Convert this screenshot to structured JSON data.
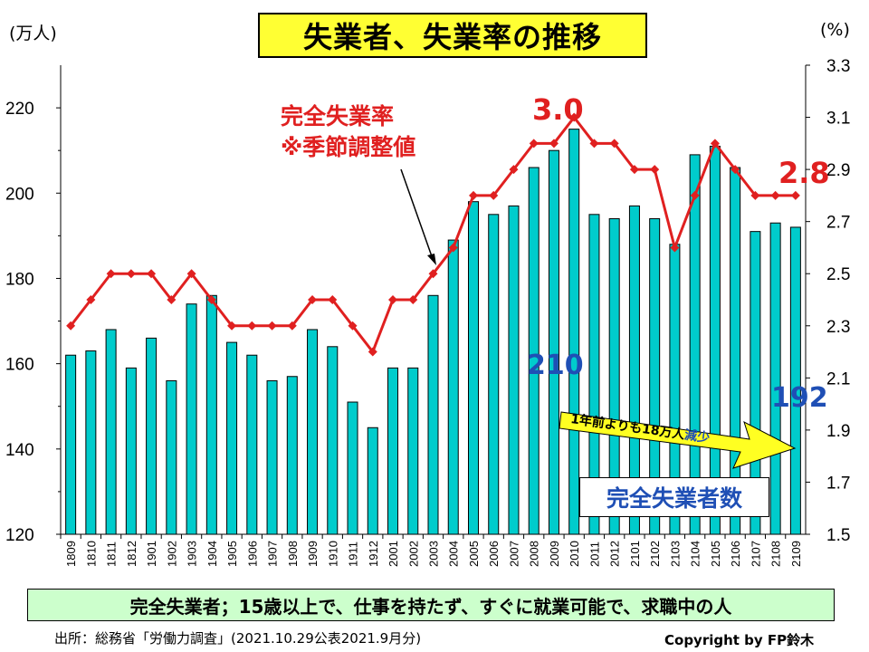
{
  "title": "失業者、失業率の推移",
  "unit_left": "(万人)",
  "unit_right": "(%)",
  "rate_label_line1": "完全失業率",
  "rate_label_line2": "※季節調整値",
  "legend_unemployed": "完全失業者数",
  "arrow_text": "1年前よりも18万人",
  "arrow_text_emph": "減少",
  "definition": "完全失業者；15歳以上で、仕事を持たず、すぐに就業可能で、求職中の人",
  "source": "出所：総務省「労働力調査」(2021.10.29公表2021.9月分)",
  "copyright": "Copyright by FP鈴木",
  "labels": {
    "rate_peak": "3.0",
    "rate_last": "2.8",
    "count_peak": "210",
    "count_last": "192"
  },
  "colors": {
    "bar_fill": "#00cccc",
    "line": "#e02020",
    "label_blue": "#1f4fb5",
    "title_bg": "#ffff33",
    "definition_bg": "#ccffcc"
  },
  "chart_data": {
    "type": "bar",
    "categories": [
      "1809",
      "1810",
      "1811",
      "1812",
      "1901",
      "1902",
      "1903",
      "1904",
      "1905",
      "1906",
      "1907",
      "1908",
      "1909",
      "1910",
      "1911",
      "1912",
      "2001",
      "2002",
      "2003",
      "2004",
      "2005",
      "2006",
      "2007",
      "2008",
      "2009",
      "2010",
      "2011",
      "2012",
      "2101",
      "2102",
      "2103",
      "2104",
      "2105",
      "2106",
      "2107",
      "2108",
      "2109"
    ],
    "series": [
      {
        "name": "完全失業者数",
        "axis": "left",
        "values": [
          162,
          163,
          168,
          159,
          166,
          156,
          174,
          176,
          165,
          162,
          156,
          157,
          168,
          164,
          151,
          145,
          159,
          159,
          176,
          189,
          198,
          195,
          197,
          206,
          210,
          215,
          195,
          194,
          197,
          194,
          188,
          209,
          211,
          206,
          191,
          193,
          192
        ]
      },
      {
        "name": "完全失業率",
        "axis": "right",
        "values": [
          2.3,
          2.4,
          2.5,
          2.5,
          2.5,
          2.4,
          2.5,
          2.4,
          2.3,
          2.3,
          2.3,
          2.3,
          2.4,
          2.4,
          2.3,
          2.2,
          2.4,
          2.4,
          2.5,
          2.6,
          2.8,
          2.8,
          2.9,
          3.0,
          3.0,
          3.1,
          3.0,
          3.0,
          2.9,
          2.9,
          2.6,
          2.8,
          3.0,
          2.9,
          2.8,
          2.8,
          2.8
        ]
      }
    ],
    "y_left": {
      "ylim": [
        120,
        230
      ],
      "ticks": [
        120,
        140,
        160,
        180,
        200,
        220
      ]
    },
    "y_right": {
      "ylim": [
        1.5,
        3.3
      ],
      "ticks": [
        "1.5",
        "1.7",
        "1.9",
        "2.1",
        "2.3",
        "2.5",
        "2.7",
        "2.9",
        "3.1",
        "3.3"
      ]
    },
    "grid": false
  }
}
